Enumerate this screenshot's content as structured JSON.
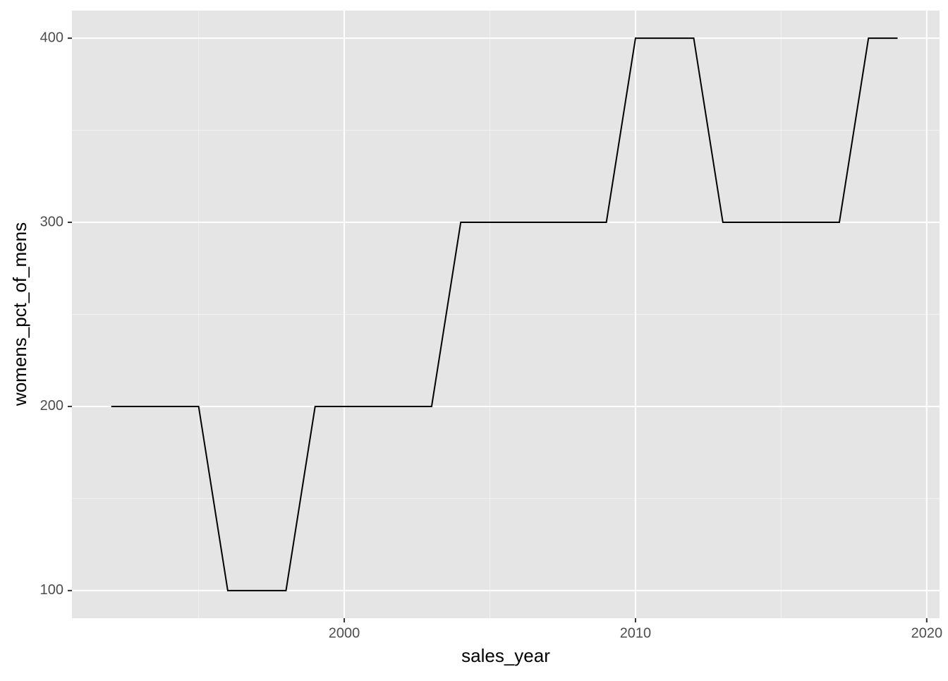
{
  "chart_data": {
    "type": "line",
    "x_label": "sales_year",
    "y_label": "womens_pct_of_mens",
    "x": [
      1992,
      1993,
      1994,
      1995,
      1996,
      1997,
      1998,
      1999,
      2000,
      2001,
      2002,
      2003,
      2004,
      2005,
      2006,
      2007,
      2008,
      2009,
      2010,
      2011,
      2012,
      2013,
      2014,
      2015,
      2016,
      2017,
      2018,
      2019
    ],
    "series": [
      {
        "color": "#000000",
        "values": [
          200,
          200,
          200,
          200,
          100,
          100,
          100,
          200,
          200,
          200,
          200,
          200,
          300,
          300,
          300,
          300,
          300,
          300,
          400,
          400,
          400,
          300,
          300,
          300,
          300,
          300,
          400,
          400
        ]
      }
    ],
    "xlim": [
      1990.65,
      2020.44
    ],
    "xticks": [
      2000,
      2010,
      2020
    ],
    "ylim": [
      85,
      415
    ],
    "yticks": [
      100,
      200,
      300,
      400
    ],
    "grid": true
  }
}
